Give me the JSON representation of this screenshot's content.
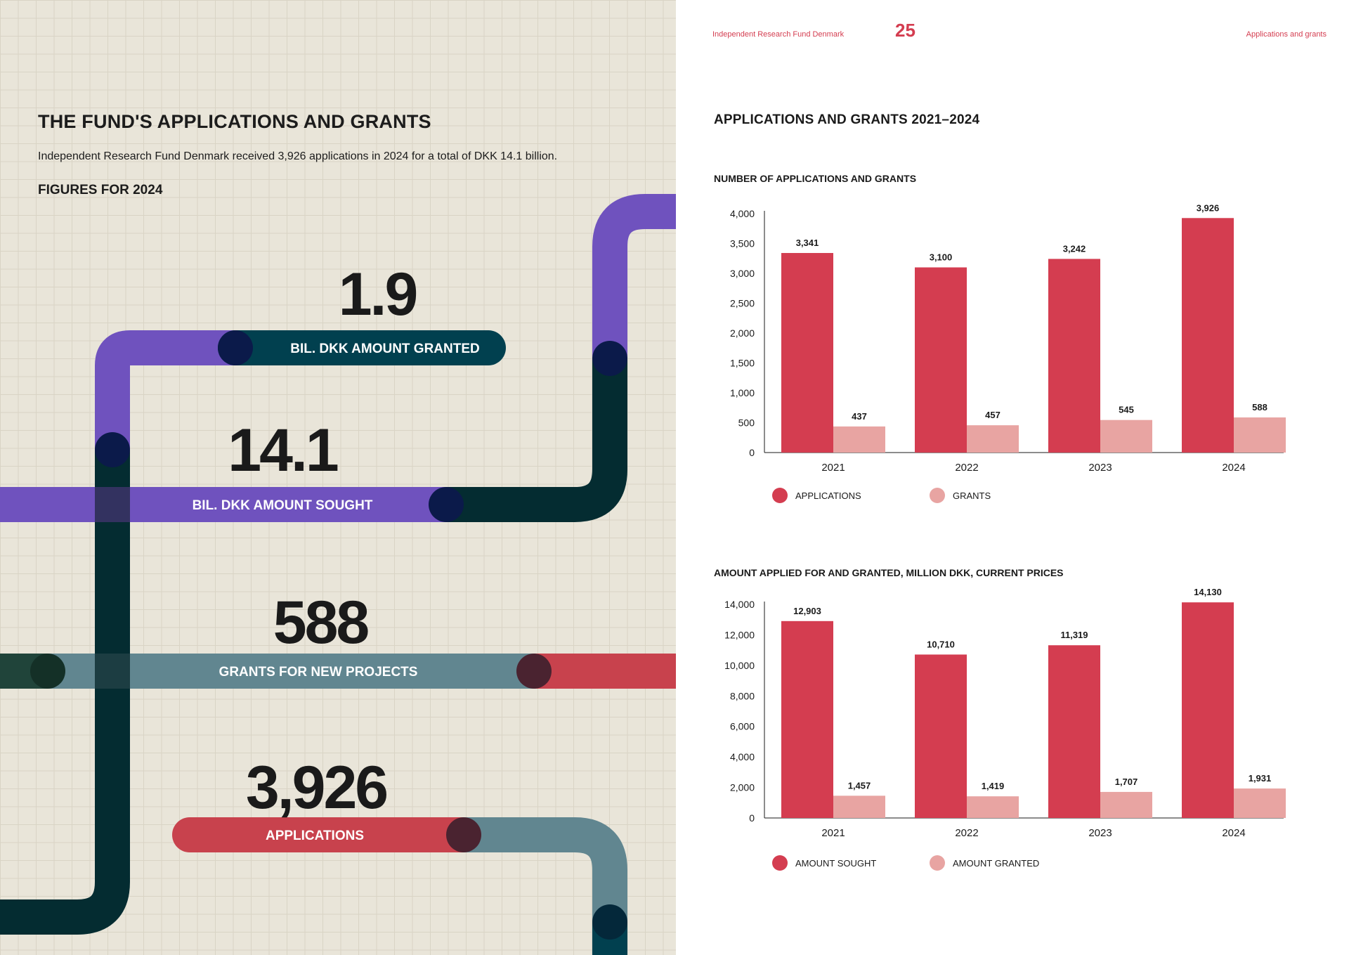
{
  "left": {
    "title": "THE FUND'S APPLICATIONS AND GRANTS",
    "intro": "Independent Research Fund Denmark received 3,926 applications in 2024 for a total of DKK 14.1 billion.",
    "subtitle": "FIGURES FOR 2024",
    "figures": [
      {
        "value": "1.9",
        "label": "BIL. DKK AMOUNT GRANTED"
      },
      {
        "value": "14.1",
        "label": "BIL. DKK AMOUNT SOUGHT"
      },
      {
        "value": "588",
        "label": "GRANTS FOR NEW PROJECTS"
      },
      {
        "value": "3,926",
        "label": "APPLICATIONS"
      }
    ]
  },
  "header": {
    "org": "Independent Research Fund Denmark",
    "page": "25",
    "section": "Applications and grants"
  },
  "right": {
    "title": "APPLICATIONS AND GRANTS 2021–2024"
  },
  "colors": {
    "primary": "#d43d50",
    "secondary": "#e8a4a2",
    "purple": "#6f52be",
    "dark_teal": "#042c31",
    "slate": "#618690",
    "navy_teal": "#01404f"
  },
  "chart_data": [
    {
      "type": "bar",
      "title": "NUMBER OF APPLICATIONS AND GRANTS",
      "categories": [
        "2021",
        "2022",
        "2023",
        "2024"
      ],
      "series": [
        {
          "name": "APPLICATIONS",
          "values": [
            3341,
            3100,
            3242,
            3926
          ],
          "labels": [
            "3,341",
            "3,100",
            "3,242",
            "3,926"
          ]
        },
        {
          "name": "GRANTS",
          "values": [
            437,
            457,
            545,
            588
          ],
          "labels": [
            "437",
            "457",
            "545",
            "588"
          ]
        }
      ],
      "yticks": [
        "0",
        "500",
        "1,000",
        "1,500",
        "2,000",
        "2,500",
        "3,000",
        "3,500",
        "4,000"
      ],
      "ylim": [
        0,
        4000
      ],
      "grid": false,
      "legend": "bottom-left"
    },
    {
      "type": "bar",
      "title": "AMOUNT APPLIED FOR AND GRANTED, MILLION DKK, CURRENT PRICES",
      "categories": [
        "2021",
        "2022",
        "2023",
        "2024"
      ],
      "series": [
        {
          "name": "AMOUNT SOUGHT",
          "values": [
            12903,
            10710,
            11319,
            14130
          ],
          "labels": [
            "12,903",
            "10,710",
            "11,319",
            "14,130"
          ]
        },
        {
          "name": "AMOUNT GRANTED",
          "values": [
            1457,
            1419,
            1707,
            1931
          ],
          "labels": [
            "1,457",
            "1,419",
            "1,707",
            "1,931"
          ]
        }
      ],
      "yticks": [
        "0",
        "2,000",
        "4,000",
        "6,000",
        "8,000",
        "10,000",
        "12,000",
        "14,000"
      ],
      "ylim": [
        0,
        14000
      ],
      "grid": false,
      "legend": "bottom-left"
    }
  ]
}
